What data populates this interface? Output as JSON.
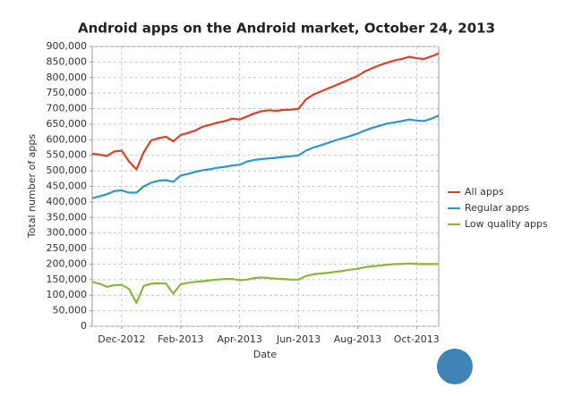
{
  "chart_data": {
    "type": "line",
    "title": "Android apps on the Android market, October 24, 2013",
    "x_label": "Date",
    "y_label": "Total number of apps",
    "categories": [
      null,
      null,
      null,
      null,
      "Dec-2012",
      null,
      null,
      null,
      null,
      null,
      null,
      null,
      "Feb-2013",
      null,
      null,
      null,
      null,
      null,
      null,
      null,
      "Apr-2013",
      null,
      null,
      null,
      null,
      null,
      null,
      null,
      "Jun-2013",
      null,
      null,
      null,
      null,
      null,
      null,
      null,
      "Aug-2013",
      null,
      null,
      null,
      null,
      null,
      null,
      null,
      "Oct-2013",
      null,
      null,
      null
    ],
    "series": [
      {
        "name": "All apps",
        "color": "#d9412b",
        "values": [
          555000,
          552000,
          548000,
          562000,
          565000,
          530000,
          505000,
          560000,
          598000,
          605000,
          610000,
          595000,
          615000,
          622000,
          630000,
          642000,
          648000,
          655000,
          660000,
          668000,
          665000,
          675000,
          685000,
          692000,
          695000,
          693000,
          696000,
          697000,
          700000,
          730000,
          745000,
          755000,
          765000,
          775000,
          785000,
          795000,
          805000,
          820000,
          830000,
          840000,
          848000,
          855000,
          860000,
          867000,
          862000,
          860000,
          868000,
          878000
        ]
      },
      {
        "name": "Regular apps",
        "color": "#2a9ac4",
        "values": [
          412000,
          418000,
          425000,
          435000,
          437000,
          430000,
          430000,
          450000,
          462000,
          468000,
          470000,
          465000,
          485000,
          490000,
          497000,
          502000,
          505000,
          510000,
          513000,
          517000,
          520000,
          530000,
          535000,
          538000,
          540000,
          542000,
          545000,
          547000,
          550000,
          565000,
          575000,
          582000,
          590000,
          598000,
          605000,
          612000,
          620000,
          630000,
          638000,
          645000,
          652000,
          656000,
          660000,
          665000,
          662000,
          660000,
          668000,
          678000
        ]
      },
      {
        "name": "Low quality apps",
        "color": "#8db43e",
        "values": [
          143000,
          137000,
          127000,
          132000,
          133000,
          120000,
          75000,
          130000,
          137000,
          138000,
          138000,
          105000,
          135000,
          140000,
          143000,
          145000,
          148000,
          150000,
          152000,
          152000,
          148000,
          150000,
          155000,
          157000,
          155000,
          153000,
          152000,
          150000,
          150000,
          162000,
          167000,
          170000,
          172000,
          175000,
          178000,
          182000,
          185000,
          190000,
          193000,
          195000,
          198000,
          200000,
          200000,
          202000,
          200000,
          200000,
          200000,
          200000
        ]
      }
    ],
    "ylim": [
      0,
      900000
    ],
    "yticks": [
      0,
      {
        "value": 50000,
        "label": "50,000"
      },
      {
        "value": 100000,
        "label": "100,000"
      },
      {
        "value": 150000,
        "label": "150,000"
      },
      {
        "value": 200000,
        "label": "200,000"
      },
      {
        "value": 250000,
        "label": "250,000"
      },
      {
        "value": 300000,
        "label": "300,000"
      },
      {
        "value": 350000,
        "label": "350,000"
      },
      {
        "value": 400000,
        "label": "400,000"
      },
      {
        "value": 450000,
        "label": "450,000"
      },
      {
        "value": 500000,
        "label": "500,000"
      },
      {
        "value": 550000,
        "label": "550,000"
      },
      {
        "value": 600000,
        "label": "600,000"
      },
      {
        "value": 650000,
        "label": "650,000"
      },
      {
        "value": 700000,
        "label": "700,000"
      },
      {
        "value": 750000,
        "label": "750,000"
      },
      {
        "value": 800000,
        "label": "800,000"
      },
      {
        "value": 850000,
        "label": "850,000"
      },
      {
        "value": 900000,
        "label": "900,000"
      }
    ],
    "grid": true,
    "legend": "right"
  }
}
